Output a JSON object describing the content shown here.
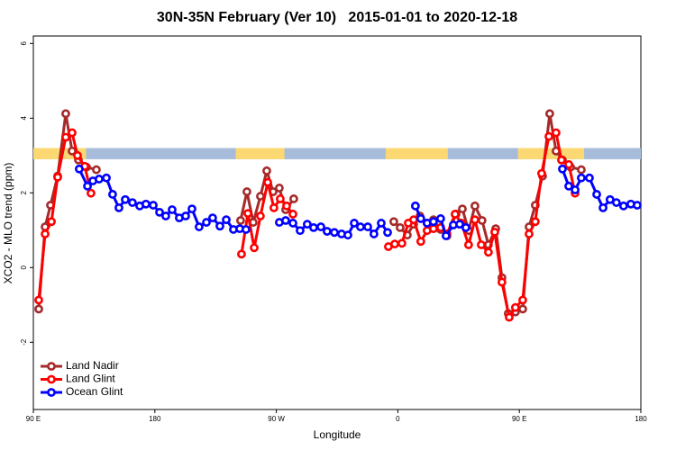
{
  "chart_data": {
    "type": "line",
    "title": "30N-35N February (Ver 10)   2015-01-01 to 2020-12-18",
    "x_label": "Longitude",
    "y_label": "XCO2 - MLO trend (ppm)",
    "xlim": [
      90,
      540
    ],
    "xticks": [
      {
        "value": 90,
        "label": "90 E"
      },
      180,
      {
        "value": 270,
        "label": "90 W"
      },
      {
        "value": 360,
        "label": "0"
      },
      {
        "value": 450,
        "label": "90 E"
      },
      {
        "value": 540,
        "label": "180"
      }
    ],
    "ylim": [
      -3.8,
      6.2
    ],
    "yticks": [
      -2,
      0,
      2,
      4,
      6
    ],
    "legend": "bottom-left",
    "band": {
      "y": [
        2.9,
        3.2
      ],
      "ocean_color": "#a7bcdb",
      "land_color": "#fcd873",
      "land": [
        [
          90,
          129
        ],
        [
          240,
          276
        ],
        [
          351,
          397
        ],
        [
          449,
          498
        ]
      ]
    },
    "series": [
      {
        "name": "Land Nadir",
        "color": "#a52a2a",
        "x": [
          94.0,
          98.7,
          102.7,
          108.0,
          114.0,
          118.7,
          123.4,
          129.4,
          136.7,
          null,
          243.5,
          248.2,
          252.9,
          258.2,
          262.9,
          267.6,
          272.2,
          276.9,
          282.9,
          null,
          357.0,
          361.7,
          367.0,
          371.7,
          376.4,
          381.7,
          386.4,
          391.7,
          396.4,
          403.1,
          407.8,
          412.4,
          417.1,
          422.4,
          427.1,
          432.5,
          437.1,
          441.8,
          447.1,
          452.5,
          457.2,
          461.8,
          467.2,
          472.5,
          477.2,
          481.9,
          487.9,
          495.9
        ],
        "values": [
          -1.11,
          1.09,
          1.67,
          2.45,
          4.12,
          3.12,
          2.88,
          2.69,
          2.62,
          null,
          1.26,
          2.03,
          1.21,
          1.91,
          2.59,
          2.03,
          2.13,
          1.55,
          1.84,
          null,
          1.23,
          1.07,
          0.87,
          1.16,
          1.38,
          1.19,
          1.28,
          1.02,
          0.85,
          1.43,
          1.57,
          0.99,
          1.65,
          1.26,
          0.61,
          1.04,
          -0.27,
          -1.23,
          -1.19,
          -1.11,
          1.09,
          1.67,
          2.45,
          4.12,
          3.12,
          2.88,
          2.69,
          2.62
        ]
      },
      {
        "name": "Land Glint",
        "color": "#ff0000",
        "x": [
          94.0,
          98.7,
          103.4,
          108.0,
          114.0,
          118.7,
          122.7,
          128.1,
          132.7,
          null,
          244.2,
          248.9,
          253.6,
          258.2,
          263.6,
          268.2,
          272.9,
          277.6,
          282.3,
          null,
          353.0,
          357.7,
          363.0,
          367.7,
          371.7,
          377.0,
          381.7,
          386.4,
          391.7,
          396.4,
          402.4,
          407.1,
          412.4,
          417.1,
          421.8,
          427.1,
          431.8,
          437.1,
          442.5,
          447.1,
          452.5,
          457.2,
          461.8,
          466.5,
          471.9,
          477.2,
          481.2,
          486.6,
          491.3
        ],
        "values": [
          -0.87,
          0.9,
          1.23,
          2.42,
          3.49,
          3.61,
          3.0,
          2.71,
          1.99,
          null,
          0.36,
          1.45,
          0.53,
          1.38,
          2.28,
          1.6,
          1.84,
          1.65,
          1.43,
          null,
          0.56,
          0.63,
          0.65,
          1.19,
          1.28,
          0.7,
          0.99,
          1.04,
          1.07,
          0.9,
          1.43,
          1.19,
          0.61,
          1.28,
          0.61,
          0.41,
          0.95,
          -0.39,
          -1.33,
          -1.07,
          -0.87,
          0.9,
          1.23,
          2.52,
          3.51,
          3.61,
          2.88,
          2.76,
          1.99
        ]
      },
      {
        "name": "Ocean Glint",
        "color": "#0000ff",
        "x": [
          124.0,
          130.1,
          134.1,
          138.7,
          144.1,
          148.7,
          153.4,
          158.1,
          163.4,
          168.8,
          173.4,
          178.8,
          183.5,
          188.1,
          192.8,
          198.1,
          202.8,
          207.5,
          212.8,
          218.2,
          222.8,
          228.2,
          232.9,
          238.2,
          242.9,
          247.5,
          null,
          272.2,
          276.9,
          282.3,
          287.6,
          292.9,
          297.6,
          303.0,
          307.6,
          313.0,
          318.3,
          323.0,
          327.7,
          332.3,
          337.7,
          342.3,
          347.7,
          352.4,
          null,
          373.0,
          377.0,
          381.7,
          386.4,
          391.7,
          395.7,
          401.1,
          405.8,
          410.4,
          null,
          481.9,
          486.6,
          491.3,
          495.9,
          501.9,
          507.3,
          512.0,
          517.2,
          521.9,
          527.2,
          532.6,
          537.3
        ],
        "values": [
          2.64,
          2.18,
          2.32,
          2.37,
          2.4,
          1.96,
          1.6,
          1.82,
          1.74,
          1.65,
          1.7,
          1.67,
          1.48,
          1.38,
          1.55,
          1.33,
          1.38,
          1.57,
          1.09,
          1.21,
          1.33,
          1.11,
          1.28,
          1.02,
          1.04,
          1.02,
          null,
          1.21,
          1.26,
          1.19,
          0.99,
          1.16,
          1.07,
          1.09,
          0.97,
          0.94,
          0.9,
          0.87,
          1.19,
          1.09,
          1.09,
          0.9,
          1.19,
          0.94,
          null,
          1.65,
          1.31,
          1.19,
          1.23,
          1.31,
          0.85,
          1.14,
          1.16,
          1.07,
          null,
          2.64,
          2.18,
          2.08,
          2.4,
          2.4,
          1.96,
          1.6,
          1.82,
          1.74,
          1.65,
          1.7,
          1.67
        ]
      }
    ]
  }
}
